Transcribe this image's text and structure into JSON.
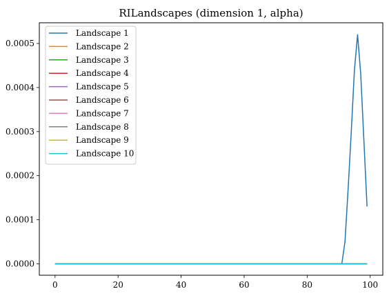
{
  "chart_data": {
    "type": "line",
    "title": "RILandscapes (dimension 1, alpha)",
    "xlabel": "",
    "ylabel": "",
    "xlim": [
      -5,
      104
    ],
    "ylim": [
      -2.6e-05,
      0.000547
    ],
    "xticks": [
      0,
      20,
      40,
      60,
      80,
      100
    ],
    "xtick_labels": [
      "0",
      "20",
      "40",
      "60",
      "80",
      "100"
    ],
    "yticks": [
      0,
      0.0001,
      0.0002,
      0.0003,
      0.0004,
      0.0005
    ],
    "ytick_labels": [
      "0.0000",
      "0.0001",
      "0.0002",
      "0.0003",
      "0.0004",
      "0.0005"
    ],
    "grid": false,
    "legend_position": "upper-left",
    "series": [
      {
        "name": "Landscape 1",
        "color": "#1f77b4",
        "x": [
          0,
          91,
          92,
          93,
          94,
          95,
          96,
          97,
          98,
          99
        ],
        "y": [
          0,
          0,
          5e-05,
          0.00017,
          0.0003,
          0.00044,
          0.00052,
          0.00043,
          0.00028,
          0.00013
        ]
      },
      {
        "name": "Landscape 2",
        "color": "#ff7f0e",
        "x": [
          0,
          99
        ],
        "y": [
          0,
          0
        ]
      },
      {
        "name": "Landscape 3",
        "color": "#2ca02c",
        "x": [
          0,
          99
        ],
        "y": [
          0,
          0
        ]
      },
      {
        "name": "Landscape 4",
        "color": "#d62728",
        "x": [
          0,
          99
        ],
        "y": [
          0,
          0
        ]
      },
      {
        "name": "Landscape 5",
        "color": "#9467bd",
        "x": [
          0,
          99
        ],
        "y": [
          0,
          0
        ]
      },
      {
        "name": "Landscape 6",
        "color": "#8c564b",
        "x": [
          0,
          99
        ],
        "y": [
          0,
          0
        ]
      },
      {
        "name": "Landscape 7",
        "color": "#e377c2",
        "x": [
          0,
          99
        ],
        "y": [
          0,
          0
        ]
      },
      {
        "name": "Landscape 8",
        "color": "#7f7f7f",
        "x": [
          0,
          99
        ],
        "y": [
          0,
          0
        ]
      },
      {
        "name": "Landscape 9",
        "color": "#bcbd22",
        "x": [
          0,
          99
        ],
        "y": [
          0,
          0
        ]
      },
      {
        "name": "Landscape 10",
        "color": "#17becf",
        "x": [
          0,
          99
        ],
        "y": [
          0,
          0
        ]
      }
    ]
  }
}
